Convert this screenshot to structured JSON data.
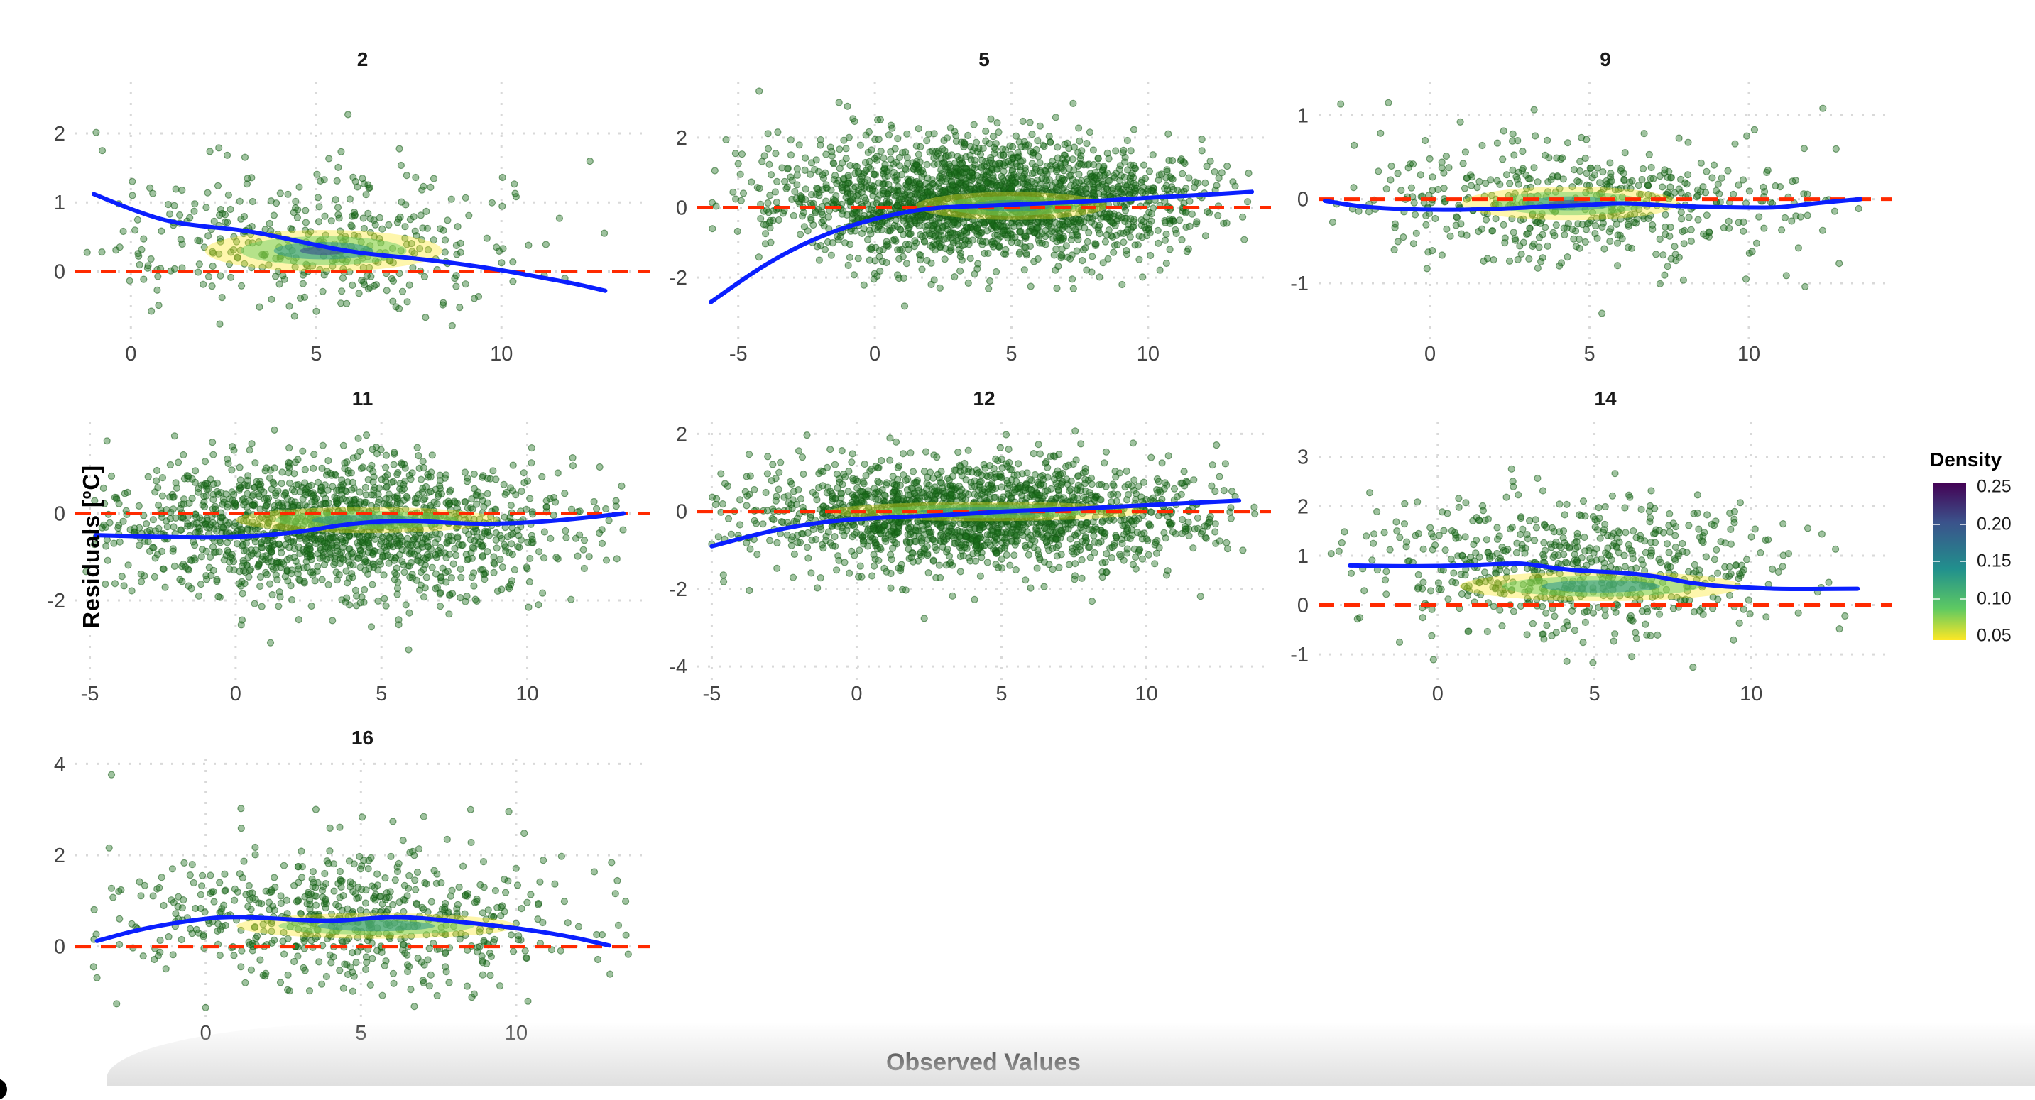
{
  "chart_data": {
    "type": "scatter",
    "title": "",
    "xlabel": "Observed Values",
    "ylabel": "Residuals [ºC]",
    "facet_layout": {
      "rows": 3,
      "cols": 3
    },
    "grid": true,
    "reference_line": {
      "y": 0,
      "style": "dashed",
      "color": "#ff2a00"
    },
    "smooth_line": {
      "color": "#0a1fff"
    },
    "point_color": "#2e7d32",
    "legend": {
      "title": "Density",
      "position": "right",
      "ticks": [
        "0.25",
        "0.20",
        "0.15",
        "0.10",
        "0.05"
      ],
      "range": [
        0.05,
        0.25
      ],
      "palette": [
        "#440154",
        "#3b528b",
        "#21908d",
        "#5ec962",
        "#fde725"
      ]
    },
    "panels": [
      {
        "title": "2",
        "xlim": [
          -1.5,
          14
        ],
        "ylim": [
          -0.9,
          2.75
        ],
        "xticks": [
          0,
          5,
          10
        ],
        "yticks": [
          0,
          1,
          2
        ],
        "smooth": [
          [
            -1,
            1.12
          ],
          [
            0,
            0.9
          ],
          [
            1,
            0.72
          ],
          [
            2,
            0.65
          ],
          [
            3,
            0.6
          ],
          [
            4,
            0.5
          ],
          [
            5,
            0.38
          ],
          [
            6,
            0.28
          ],
          [
            7,
            0.22
          ],
          [
            8,
            0.17
          ],
          [
            9,
            0.1
          ],
          [
            10,
            0.02
          ],
          [
            11,
            -0.08
          ],
          [
            12,
            -0.18
          ],
          [
            12.8,
            -0.28
          ]
        ],
        "density_center": [
          5.2,
          0.3
        ],
        "density_spread": [
          3.2,
          0.3
        ],
        "scatter_center": [
          5,
          0.4
        ],
        "scatter_sd": [
          3.2,
          0.6
        ],
        "n": 420
      },
      {
        "title": "5",
        "xlim": [
          -6.5,
          14.5
        ],
        "ylim": [
          -3.6,
          3.6
        ],
        "xticks": [
          -5,
          0,
          5,
          10
        ],
        "yticks": [
          -2,
          0,
          2
        ],
        "smooth": [
          [
            -6,
            -2.7
          ],
          [
            -4,
            -1.6
          ],
          [
            -2,
            -0.8
          ],
          [
            0,
            -0.3
          ],
          [
            2,
            0
          ],
          [
            4,
            0.05
          ],
          [
            6,
            0.12
          ],
          [
            8,
            0.18
          ],
          [
            10,
            0.28
          ],
          [
            12,
            0.36
          ],
          [
            13.8,
            0.45
          ]
        ],
        "density_center": [
          5,
          0.05
        ],
        "density_spread": [
          3.5,
          0.4
        ],
        "scatter_center": [
          4,
          0.2
        ],
        "scatter_sd": [
          3.8,
          0.9
        ],
        "n": 2200
      },
      {
        "title": "9",
        "xlim": [
          -3.5,
          14.5
        ],
        "ylim": [
          -1.6,
          1.4
        ],
        "xticks": [
          0,
          5,
          10
        ],
        "yticks": [
          -1,
          0,
          1
        ],
        "smooth": [
          [
            -3.3,
            -0.02
          ],
          [
            -2,
            -0.1
          ],
          [
            0,
            -0.13
          ],
          [
            2,
            -0.12
          ],
          [
            4,
            -0.08
          ],
          [
            5,
            -0.07
          ],
          [
            6,
            -0.04
          ],
          [
            8,
            -0.09
          ],
          [
            10,
            -0.1
          ],
          [
            11,
            -0.1
          ],
          [
            12,
            -0.05
          ],
          [
            13.5,
            0.0
          ]
        ],
        "density_center": [
          4.4,
          -0.05
        ],
        "density_spread": [
          3.4,
          0.2
        ],
        "scatter_center": [
          4.5,
          -0.05
        ],
        "scatter_sd": [
          3.5,
          0.4
        ],
        "n": 520
      },
      {
        "title": "11",
        "xlim": [
          -5.5,
          14.2
        ],
        "ylim": [
          -3.7,
          2.1
        ],
        "xticks": [
          -5,
          0,
          5,
          10
        ],
        "yticks": [
          -2,
          0
        ],
        "smooth": [
          [
            -4.8,
            -0.5
          ],
          [
            -2,
            -0.55
          ],
          [
            0,
            -0.55
          ],
          [
            2,
            -0.45
          ],
          [
            4,
            -0.22
          ],
          [
            6,
            -0.15
          ],
          [
            8,
            -0.25
          ],
          [
            10,
            -0.22
          ],
          [
            12,
            -0.1
          ],
          [
            13.3,
            0.0
          ]
        ],
        "density_center": [
          4.5,
          -0.15
        ],
        "density_spread": [
          4.5,
          0.3
        ],
        "scatter_center": [
          3.5,
          -0.3
        ],
        "scatter_sd": [
          3.8,
          0.85
        ],
        "n": 1600
      },
      {
        "title": "12",
        "xlim": [
          -5.5,
          14.3
        ],
        "ylim": [
          -4.2,
          2.3
        ],
        "xticks": [
          -5,
          0,
          5,
          10
        ],
        "yticks": [
          -4,
          -2,
          0,
          2
        ],
        "smooth": [
          [
            -5,
            -0.9
          ],
          [
            -3,
            -0.5
          ],
          [
            -1,
            -0.25
          ],
          [
            1,
            -0.15
          ],
          [
            3,
            -0.1
          ],
          [
            5,
            0
          ],
          [
            7,
            0.05
          ],
          [
            9,
            0.12
          ],
          [
            11,
            0.2
          ],
          [
            13.2,
            0.28
          ]
        ],
        "density_center": [
          4.5,
          0.0
        ],
        "density_spread": [
          5.5,
          0.25
        ],
        "scatter_center": [
          4,
          -0.1
        ],
        "scatter_sd": [
          3.8,
          0.75
        ],
        "n": 1800
      },
      {
        "title": "14",
        "xlim": [
          -3.8,
          14.5
        ],
        "ylim": [
          -1.4,
          3.7
        ],
        "xticks": [
          0,
          5,
          10
        ],
        "yticks": [
          -1,
          0,
          1,
          2,
          3
        ],
        "smooth": [
          [
            -2.8,
            0.8
          ],
          [
            -1,
            0.78
          ],
          [
            1,
            0.8
          ],
          [
            2.5,
            0.85
          ],
          [
            3,
            0.82
          ],
          [
            4,
            0.72
          ],
          [
            5,
            0.68
          ],
          [
            6,
            0.65
          ],
          [
            7,
            0.58
          ],
          [
            8,
            0.45
          ],
          [
            9,
            0.38
          ],
          [
            10,
            0.35
          ],
          [
            11,
            0.32
          ],
          [
            13.4,
            0.33
          ]
        ],
        "density_center": [
          5.2,
          0.38
        ],
        "density_spread": [
          4.5,
          0.3
        ],
        "scatter_center": [
          4.5,
          0.8
        ],
        "scatter_sd": [
          3.5,
          0.8
        ],
        "n": 650
      },
      {
        "title": "16",
        "xlim": [
          -4.2,
          14.3
        ],
        "ylim": [
          -1.5,
          4.1
        ],
        "xticks": [
          0,
          5,
          10
        ],
        "yticks": [
          0,
          2,
          4
        ],
        "smooth": [
          [
            -3.5,
            0.12
          ],
          [
            -2,
            0.4
          ],
          [
            0,
            0.62
          ],
          [
            1,
            0.65
          ],
          [
            2,
            0.62
          ],
          [
            3,
            0.58
          ],
          [
            4,
            0.55
          ],
          [
            5,
            0.6
          ],
          [
            6,
            0.65
          ],
          [
            7,
            0.62
          ],
          [
            8,
            0.55
          ],
          [
            9,
            0.48
          ],
          [
            10,
            0.4
          ],
          [
            11,
            0.3
          ],
          [
            12,
            0.18
          ],
          [
            13,
            0.02
          ]
        ],
        "density_center": [
          5.5,
          0.45
        ],
        "density_spread": [
          4.5,
          0.28
        ],
        "scatter_center": [
          4.5,
          0.6
        ],
        "scatter_sd": [
          3.6,
          0.85
        ],
        "n": 650
      }
    ]
  }
}
